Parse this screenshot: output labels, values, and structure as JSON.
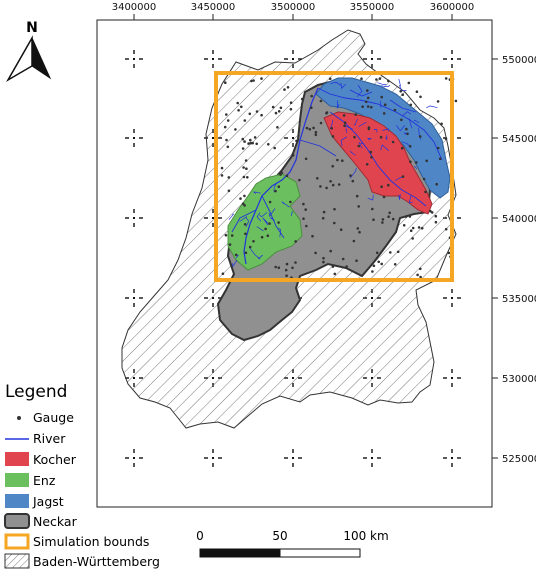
{
  "map": {
    "x_ticks": [
      "3400000",
      "3450000",
      "3500000",
      "3550000",
      "3600000"
    ],
    "y_ticks": [
      "5500000",
      "5450000",
      "5400000",
      "5350000",
      "5300000",
      "5250000"
    ]
  },
  "north_arrow": {
    "label": "N"
  },
  "legend": {
    "title": "Legend",
    "items": [
      {
        "label": "Gauge",
        "symbol": "point",
        "color": "#333333"
      },
      {
        "label": "River",
        "symbol": "line",
        "color": "#2233dd"
      },
      {
        "label": "Kocher",
        "symbol": "fill",
        "color": "#e0454f"
      },
      {
        "label": "Enz",
        "symbol": "fill",
        "color": "#6cbf5f"
      },
      {
        "label": "Jagst",
        "symbol": "fill",
        "color": "#4f86c6"
      },
      {
        "label": "Neckar",
        "symbol": "fill",
        "color": "#909090"
      },
      {
        "label": "Simulation bounds",
        "symbol": "outline",
        "color": "#f5a623"
      },
      {
        "label": "Baden-Württemberg",
        "symbol": "hatch",
        "color": "#555555"
      }
    ]
  },
  "scale_bar": {
    "labels": [
      "0",
      "50",
      "100 km"
    ]
  },
  "colors": {
    "kocher": "#e0454f",
    "enz": "#6cbf5f",
    "jagst": "#4f86c6",
    "neckar": "#909090",
    "simulation_bounds": "#f5a623",
    "river": "#2233dd",
    "gauge": "#333333"
  }
}
